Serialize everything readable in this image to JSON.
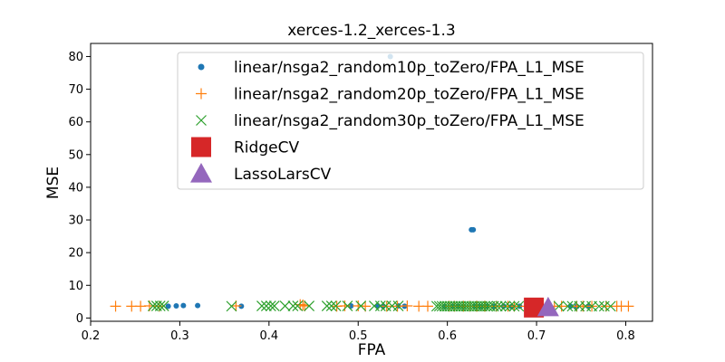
{
  "chart_data": {
    "type": "scatter",
    "title": "xerces-1.2_xerces-1.3",
    "xlabel": "FPA",
    "ylabel": "MSE",
    "xlim": [
      0.2,
      0.83
    ],
    "ylim": [
      -1,
      84
    ],
    "xticks": [
      "0.2",
      "0.3",
      "0.4",
      "0.5",
      "0.6",
      "0.7",
      "0.8"
    ],
    "yticks": [
      "0",
      "10",
      "20",
      "30",
      "40",
      "50",
      "60",
      "70",
      "80"
    ],
    "grid": false,
    "legend_position": "upper-right",
    "series": [
      {
        "name": "linear/nsga2_random10p_toZero/FPA_L1_MSE",
        "marker": "dot",
        "color": "#1f77b4",
        "points": [
          [
            0.287,
            3.6
          ],
          [
            0.296,
            3.7
          ],
          [
            0.304,
            3.8
          ],
          [
            0.32,
            3.8
          ],
          [
            0.369,
            3.6
          ],
          [
            0.492,
            3.7
          ],
          [
            0.522,
            3.7
          ],
          [
            0.528,
            3.6
          ],
          [
            0.545,
            3.7
          ],
          [
            0.552,
            3.6
          ],
          [
            0.597,
            3.5
          ],
          [
            0.606,
            3.6
          ],
          [
            0.612,
            3.6
          ],
          [
            0.618,
            3.5
          ],
          [
            0.627,
            27.0
          ],
          [
            0.629,
            27.0
          ],
          [
            0.631,
            3.6
          ],
          [
            0.637,
            3.5
          ],
          [
            0.644,
            3.6
          ],
          [
            0.652,
            3.5
          ],
          [
            0.663,
            3.6
          ],
          [
            0.672,
            3.5
          ],
          [
            0.681,
            3.6
          ],
          [
            0.69,
            3.5
          ],
          [
            0.738,
            3.6
          ],
          [
            0.745,
            3.5
          ],
          [
            0.758,
            3.6
          ],
          [
            0.536,
            80.0
          ]
        ]
      },
      {
        "name": "linear/nsga2_random20p_toZero/FPA_L1_MSE",
        "marker": "plus",
        "color": "#ff7f0e",
        "points": [
          [
            0.228,
            3.6
          ],
          [
            0.246,
            3.6
          ],
          [
            0.256,
            3.6
          ],
          [
            0.266,
            3.7
          ],
          [
            0.277,
            3.6
          ],
          [
            0.363,
            3.7
          ],
          [
            0.435,
            4.1
          ],
          [
            0.438,
            4.0
          ],
          [
            0.44,
            3.7
          ],
          [
            0.476,
            3.6
          ],
          [
            0.485,
            3.7
          ],
          [
            0.5,
            3.7
          ],
          [
            0.508,
            3.6
          ],
          [
            0.532,
            3.6
          ],
          [
            0.544,
            3.6
          ],
          [
            0.555,
            3.7
          ],
          [
            0.568,
            3.6
          ],
          [
            0.578,
            3.6
          ],
          [
            0.602,
            3.6
          ],
          [
            0.608,
            3.6
          ],
          [
            0.618,
            3.6
          ],
          [
            0.625,
            3.6
          ],
          [
            0.633,
            3.6
          ],
          [
            0.642,
            3.6
          ],
          [
            0.655,
            3.6
          ],
          [
            0.668,
            3.6
          ],
          [
            0.675,
            3.6
          ],
          [
            0.688,
            3.6
          ],
          [
            0.72,
            3.6
          ],
          [
            0.728,
            3.6
          ],
          [
            0.745,
            3.6
          ],
          [
            0.752,
            3.6
          ],
          [
            0.762,
            3.6
          ],
          [
            0.778,
            3.6
          ],
          [
            0.79,
            3.6
          ],
          [
            0.795,
            3.6
          ],
          [
            0.803,
            3.6
          ]
        ]
      },
      {
        "name": "linear/nsga2_random30p_toZero/FPA_L1_MSE",
        "marker": "x",
        "color": "#2ca02c",
        "points": [
          [
            0.27,
            3.7
          ],
          [
            0.274,
            3.7
          ],
          [
            0.278,
            3.7
          ],
          [
            0.282,
            3.7
          ],
          [
            0.358,
            3.6
          ],
          [
            0.392,
            3.7
          ],
          [
            0.397,
            3.7
          ],
          [
            0.402,
            3.7
          ],
          [
            0.406,
            3.7
          ],
          [
            0.418,
            3.7
          ],
          [
            0.427,
            3.7
          ],
          [
            0.432,
            3.7
          ],
          [
            0.445,
            3.7
          ],
          [
            0.465,
            3.7
          ],
          [
            0.47,
            3.7
          ],
          [
            0.475,
            3.7
          ],
          [
            0.488,
            3.7
          ],
          [
            0.503,
            3.7
          ],
          [
            0.518,
            3.7
          ],
          [
            0.525,
            3.7
          ],
          [
            0.531,
            3.7
          ],
          [
            0.538,
            3.7
          ],
          [
            0.545,
            3.7
          ],
          [
            0.588,
            3.6
          ],
          [
            0.591,
            3.6
          ],
          [
            0.594,
            3.6
          ],
          [
            0.597,
            3.6
          ],
          [
            0.6,
            3.6
          ],
          [
            0.603,
            3.6
          ],
          [
            0.606,
            3.6
          ],
          [
            0.609,
            3.6
          ],
          [
            0.612,
            3.6
          ],
          [
            0.615,
            3.6
          ],
          [
            0.618,
            3.6
          ],
          [
            0.621,
            3.6
          ],
          [
            0.624,
            3.6
          ],
          [
            0.627,
            3.6
          ],
          [
            0.63,
            3.6
          ],
          [
            0.633,
            3.6
          ],
          [
            0.636,
            3.6
          ],
          [
            0.639,
            3.6
          ],
          [
            0.642,
            3.6
          ],
          [
            0.645,
            3.6
          ],
          [
            0.648,
            3.6
          ],
          [
            0.652,
            3.6
          ],
          [
            0.656,
            3.6
          ],
          [
            0.66,
            3.6
          ],
          [
            0.665,
            3.6
          ],
          [
            0.67,
            3.6
          ],
          [
            0.675,
            3.6
          ],
          [
            0.68,
            3.6
          ],
          [
            0.725,
            3.6
          ],
          [
            0.735,
            3.6
          ],
          [
            0.74,
            3.6
          ],
          [
            0.748,
            3.6
          ],
          [
            0.755,
            3.6
          ],
          [
            0.762,
            3.6
          ],
          [
            0.77,
            3.6
          ],
          [
            0.776,
            3.6
          ],
          [
            0.783,
            3.6
          ]
        ]
      },
      {
        "name": "RidgeCV",
        "marker": "square",
        "color": "#d62728",
        "points": [
          [
            0.697,
            3.2
          ]
        ]
      },
      {
        "name": "LassoLarsCV",
        "marker": "triangle",
        "color": "#9467bd",
        "points": [
          [
            0.713,
            3.2
          ]
        ]
      }
    ]
  }
}
